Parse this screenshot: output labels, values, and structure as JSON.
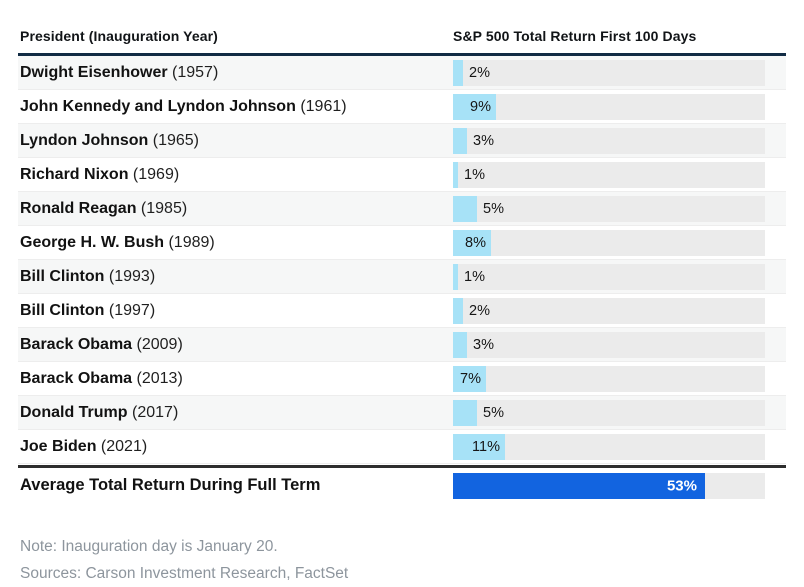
{
  "table": {
    "col1_header": "President (Inauguration Year)",
    "col2_header": "S&P 500 Total Return First 100 Days",
    "rows": [
      {
        "president": "Dwight Eisenhower",
        "year": "(1957)",
        "value": 2,
        "display": "2%"
      },
      {
        "president": "John Kennedy and Lyndon Johnson",
        "year": "(1961)",
        "value": 9,
        "display": "9%"
      },
      {
        "president": "Lyndon Johnson",
        "year": "(1965)",
        "value": 3,
        "display": "3%"
      },
      {
        "president": "Richard Nixon",
        "year": "(1969)",
        "value": 1,
        "display": "1%"
      },
      {
        "president": "Ronald Reagan",
        "year": "(1985)",
        "value": 5,
        "display": "5%"
      },
      {
        "president": "George H. W. Bush",
        "year": "(1989)",
        "value": 8,
        "display": "8%"
      },
      {
        "president": "Bill Clinton",
        "year": "(1993)",
        "value": 1,
        "display": "1%"
      },
      {
        "president": "Bill Clinton",
        "year": "(1997)",
        "value": 2,
        "display": "2%"
      },
      {
        "president": "Barack Obama",
        "year": "(2009)",
        "value": 3,
        "display": "3%"
      },
      {
        "president": "Barack Obama",
        "year": "(2013)",
        "value": 7,
        "display": "7%"
      },
      {
        "president": "Donald Trump",
        "year": "(2017)",
        "value": 5,
        "display": "5%"
      },
      {
        "president": "Joe Biden",
        "year": "(2021)",
        "value": 11,
        "display": "11%"
      }
    ],
    "average": {
      "label": "Average Total Return During Full Term",
      "value": 53,
      "display": "53%"
    }
  },
  "footer": {
    "note": "Note: Inauguration day is January 20.",
    "sources": "Sources: Carson Investment Research, FactSet"
  },
  "colors": {
    "bar_light_blue": "#a7e2f7",
    "bar_dark_blue": "#1264e0",
    "track_gray": "#ebebeb",
    "header_rule_navy": "#112b44",
    "average_rule_dark": "#2d2d2d",
    "note_gray": "#8d959d"
  },
  "chart_data": {
    "type": "bar",
    "orientation": "horizontal",
    "title": "S&P 500 Total Return First 100 Days",
    "categories": [
      "Dwight Eisenhower (1957)",
      "John Kennedy and Lyndon Johnson (1961)",
      "Lyndon Johnson (1965)",
      "Richard Nixon (1969)",
      "Ronald Reagan (1985)",
      "George H. W. Bush (1989)",
      "Bill Clinton (1993)",
      "Bill Clinton (1997)",
      "Barack Obama (2009)",
      "Barack Obama (2013)",
      "Donald Trump (2017)",
      "Joe Biden (2021)"
    ],
    "values": [
      2,
      9,
      3,
      1,
      5,
      8,
      1,
      2,
      3,
      7,
      5,
      11
    ],
    "unit": "%",
    "summary_row": {
      "label": "Average Total Return During Full Term",
      "value": 53
    },
    "xlim": [
      0,
      66
    ],
    "grid": false,
    "legend": false,
    "note": "Note: Inauguration day is January 20.",
    "sources": "Sources: Carson Investment Research, FactSet"
  }
}
